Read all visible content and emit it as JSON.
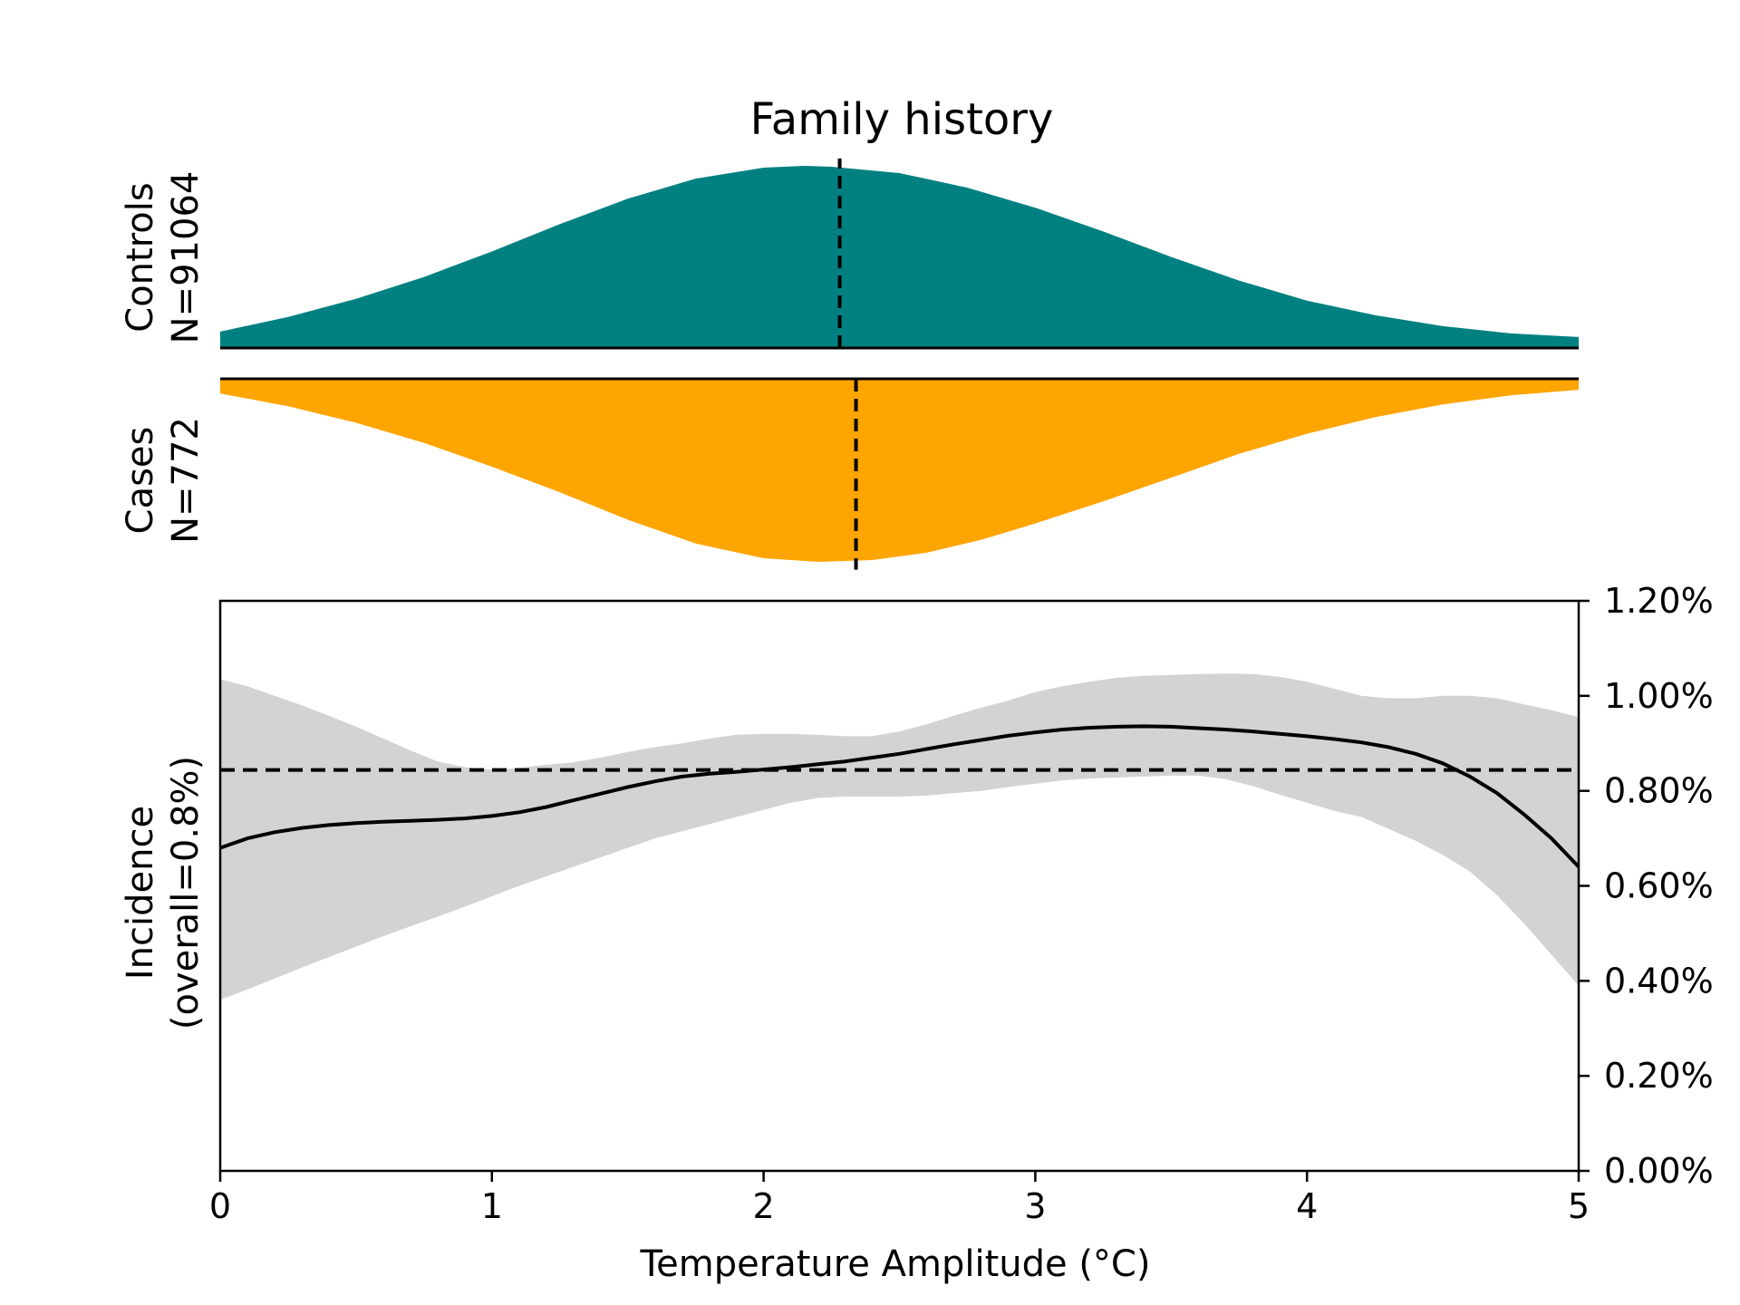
{
  "chart_data": [
    {
      "type": "area",
      "panel": "density",
      "title": "Family history",
      "xlim": [
        0,
        5
      ],
      "groups": [
        {
          "key": "controls",
          "label_line1": "Controls",
          "label_line2": "N=91064",
          "color": "#008080",
          "direction": "up",
          "mean": 2.28,
          "x": [
            0,
            0.25,
            0.5,
            0.75,
            1.0,
            1.25,
            1.5,
            1.75,
            2.0,
            2.15,
            2.25,
            2.5,
            2.75,
            3.0,
            3.25,
            3.5,
            3.75,
            4.0,
            4.25,
            4.5,
            4.75,
            5.0
          ],
          "density": [
            0.09,
            0.17,
            0.27,
            0.39,
            0.53,
            0.68,
            0.82,
            0.93,
            0.99,
            1.0,
            0.995,
            0.96,
            0.88,
            0.77,
            0.64,
            0.5,
            0.37,
            0.26,
            0.18,
            0.12,
            0.08,
            0.06
          ]
        },
        {
          "key": "cases",
          "label_line1": "Cases",
          "label_line2": "N=772",
          "color": "#FFA500",
          "direction": "down",
          "mean": 2.34,
          "x": [
            0,
            0.25,
            0.5,
            0.75,
            1.0,
            1.25,
            1.5,
            1.75,
            2.0,
            2.2,
            2.4,
            2.6,
            2.8,
            3.0,
            3.25,
            3.5,
            3.75,
            4.0,
            4.25,
            4.5,
            4.75,
            5.0
          ],
          "density": [
            0.08,
            0.15,
            0.24,
            0.35,
            0.48,
            0.62,
            0.77,
            0.9,
            0.98,
            1.0,
            0.99,
            0.95,
            0.88,
            0.79,
            0.67,
            0.54,
            0.41,
            0.3,
            0.21,
            0.14,
            0.09,
            0.06
          ]
        }
      ]
    },
    {
      "type": "line",
      "panel": "incidence",
      "xlabel": "Temperature Amplitude (°C)",
      "ylabel_line1": "Incidence",
      "ylabel_line2": "(overall=0.8%)",
      "xlim": [
        0,
        5
      ],
      "ylim": [
        0,
        1.2
      ],
      "xticks": [
        0,
        1,
        2,
        3,
        4,
        5
      ],
      "xtick_labels": [
        "0",
        "1",
        "2",
        "3",
        "4",
        "5"
      ],
      "yticks": [
        0,
        0.2,
        0.4,
        0.6,
        0.8,
        1.0,
        1.2
      ],
      "ytick_labels": [
        "0.00%",
        "0.20%",
        "0.40%",
        "0.60%",
        "0.80%",
        "1.00%",
        "1.20%"
      ],
      "y_axis_side": "right",
      "overall_incidence": 0.844,
      "band_color": "#d3d3d3",
      "x": [
        0,
        0.1,
        0.2,
        0.3,
        0.4,
        0.5,
        0.6,
        0.7,
        0.8,
        0.9,
        1.0,
        1.1,
        1.2,
        1.3,
        1.4,
        1.5,
        1.6,
        1.7,
        1.8,
        1.9,
        2.0,
        2.1,
        2.2,
        2.3,
        2.4,
        2.5,
        2.6,
        2.7,
        2.8,
        2.9,
        3.0,
        3.1,
        3.2,
        3.3,
        3.4,
        3.5,
        3.6,
        3.7,
        3.8,
        3.9,
        4.0,
        4.1,
        4.2,
        4.3,
        4.4,
        4.5,
        4.6,
        4.7,
        4.8,
        4.9,
        5.0
      ],
      "incidence": [
        0.68,
        0.7,
        0.713,
        0.722,
        0.728,
        0.732,
        0.735,
        0.737,
        0.739,
        0.742,
        0.747,
        0.755,
        0.766,
        0.78,
        0.794,
        0.808,
        0.82,
        0.83,
        0.836,
        0.84,
        0.845,
        0.85,
        0.856,
        0.862,
        0.87,
        0.878,
        0.888,
        0.898,
        0.907,
        0.916,
        0.923,
        0.929,
        0.933,
        0.935,
        0.936,
        0.935,
        0.932,
        0.929,
        0.925,
        0.92,
        0.915,
        0.909,
        0.902,
        0.892,
        0.878,
        0.858,
        0.83,
        0.795,
        0.75,
        0.7,
        0.64
      ],
      "ci_upper": [
        1.035,
        1.02,
        1.0,
        0.98,
        0.958,
        0.935,
        0.91,
        0.885,
        0.862,
        0.85,
        0.845,
        0.848,
        0.855,
        0.86,
        0.87,
        0.882,
        0.892,
        0.9,
        0.91,
        0.918,
        0.92,
        0.92,
        0.918,
        0.915,
        0.915,
        0.925,
        0.94,
        0.958,
        0.975,
        0.99,
        1.008,
        1.02,
        1.03,
        1.038,
        1.042,
        1.044,
        1.046,
        1.047,
        1.046,
        1.04,
        1.03,
        1.015,
        1.0,
        0.995,
        0.995,
        1.0,
        1.0,
        0.995,
        0.982,
        0.97,
        0.955
      ],
      "ci_lower": [
        0.36,
        0.382,
        0.405,
        0.428,
        0.45,
        0.472,
        0.494,
        0.515,
        0.535,
        0.556,
        0.578,
        0.6,
        0.62,
        0.64,
        0.66,
        0.68,
        0.7,
        0.715,
        0.73,
        0.745,
        0.76,
        0.775,
        0.785,
        0.788,
        0.788,
        0.788,
        0.79,
        0.795,
        0.8,
        0.808,
        0.815,
        0.822,
        0.826,
        0.828,
        0.83,
        0.832,
        0.832,
        0.825,
        0.81,
        0.792,
        0.775,
        0.758,
        0.745,
        0.72,
        0.695,
        0.665,
        0.63,
        0.58,
        0.52,
        0.455,
        0.39
      ]
    }
  ]
}
